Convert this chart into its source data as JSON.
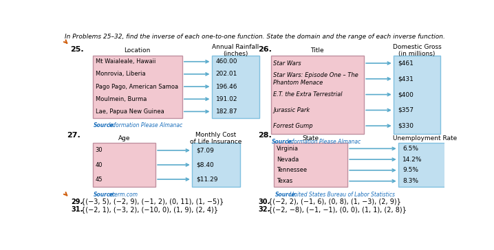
{
  "header": "In Problems 25–32, find the inverse of each one-to-one function. State the domain and the range of each inverse function.",
  "p25": {
    "left_header": "Location",
    "right_header": "Annual Rainfall\n(inches)",
    "left_items": [
      "Mt Waialeale, Hawaii",
      "Monrovia, Liberia",
      "Pago Pago, American Samoa",
      "Moulmein, Burma",
      "Lae, Papua New Guinea"
    ],
    "right_items": [
      "460.00",
      "202.01",
      "196.46",
      "191.02",
      "182.87"
    ],
    "source_bold": "Source:",
    "source_rest": " Information Please Almanac",
    "italic_left": false
  },
  "p26": {
    "left_header": "Title",
    "right_header": "Domestic Gross\n(in millions)",
    "left_items": [
      "Star Wars",
      "Star Wars: Episode One – The\nPhantom Menace",
      "E.T. the Extra Terrestrial",
      "Jurassic Park",
      "Forrest Gump"
    ],
    "right_items": [
      "$461",
      "$431",
      "$400",
      "$357",
      "$330"
    ],
    "source_bold": "Source:",
    "source_rest": " Information Please Almanac",
    "italic_left": true
  },
  "p27": {
    "left_header": "Age",
    "right_header": "Monthly Cost\nof Life Insurance",
    "left_items": [
      "30",
      "40",
      "45"
    ],
    "right_items": [
      "$7.09",
      "$8.40",
      "$11.29"
    ],
    "source_bold": "Source:",
    "source_rest": " eterm.com",
    "italic_left": false
  },
  "p28": {
    "left_header": "State",
    "right_header": "Unemployment Rate",
    "left_items": [
      "Virginia",
      "Nevada",
      "Tennessee",
      "Texas"
    ],
    "right_items": [
      "6.5%",
      "14.2%",
      "9.5%",
      "8.3%"
    ],
    "source_bold": "Source:",
    "source_rest": " United States Bureau of Labor Statistics",
    "italic_left": false
  },
  "p29_num": "29.",
  "p29_text": "{(−3, 5), (−2, 9), (−1, 2), (0, 11), (1, −5)}",
  "p30_num": "30.",
  "p30_text": "{(−2, 2), (−1, 6), (0, 8), (1, −3), (2, 9)}",
  "p31_num": "31.",
  "p31_text": "{(−2, 1), (−3, 2), (−10, 0), (1, 9), (2, 4)}",
  "p32_num": "32.",
  "p32_text": "{(−2, −8), (−1, −1), (0, 0), (1, 1), (2, 8)}",
  "pink": "#f2c8d0",
  "blue_box": "#c0dff0",
  "arrow_color": "#5aabcc",
  "source_color": "#1a6fbc",
  "border_pink": "#c090a0",
  "border_blue": "#80c0e0",
  "orange": "#d06010"
}
